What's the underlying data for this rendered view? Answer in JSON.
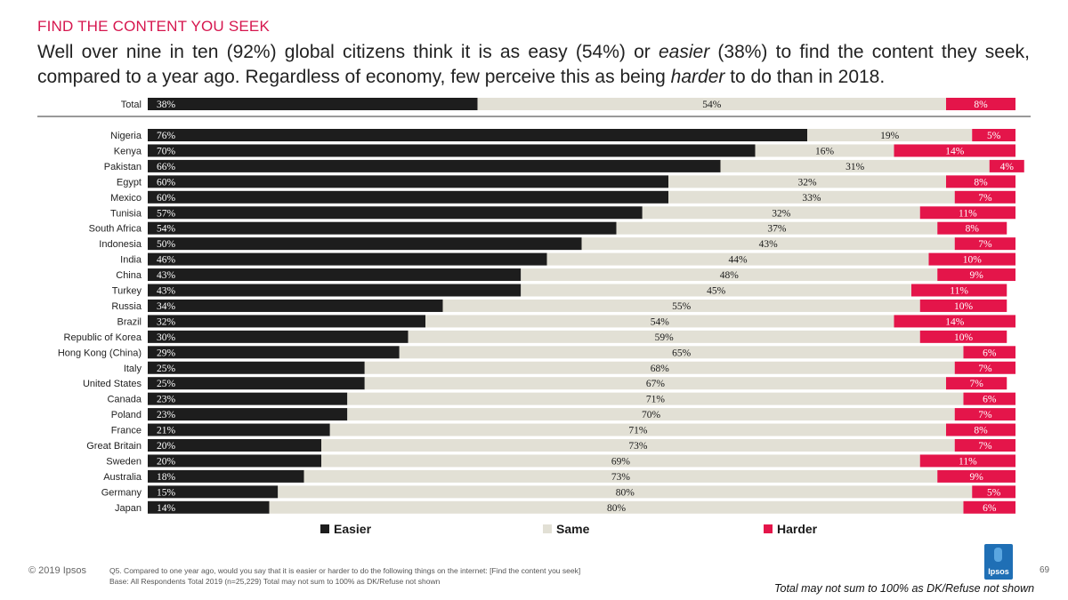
{
  "header": {
    "section_title": "FIND THE CONTENT YOU SEEK",
    "headline_parts": [
      "Well over nine in ten (92%) global citizens think it is as easy (54%) or ",
      "easier",
      " (38%) to find the content they seek, compared to a year ago. Regardless of economy, few perceive this as being ",
      "harder",
      " to do than in 2018."
    ]
  },
  "chart_data": {
    "type": "bar",
    "stacked": true,
    "orientation": "horizontal",
    "categories": [
      "Total",
      "Nigeria",
      "Kenya",
      "Pakistan",
      "Egypt",
      "Mexico",
      "Tunisia",
      "South Africa",
      "Indonesia",
      "India",
      "China",
      "Turkey",
      "Russia",
      "Brazil",
      "Republic of Korea",
      "Hong Kong (China)",
      "Italy",
      "United States",
      "Canada",
      "Poland",
      "France",
      "Great Britain",
      "Sweden",
      "Australia",
      "Germany",
      "Japan"
    ],
    "series": [
      {
        "name": "Easier",
        "color": "#1d1d1d",
        "label_color": "#ffffff",
        "values": [
          38,
          76,
          70,
          66,
          60,
          60,
          57,
          54,
          50,
          46,
          43,
          43,
          34,
          32,
          30,
          29,
          25,
          25,
          23,
          23,
          21,
          20,
          20,
          18,
          15,
          14
        ]
      },
      {
        "name": "Same",
        "color": "#e2e0d5",
        "label_color": "#1a1a1a",
        "values": [
          54,
          19,
          16,
          31,
          32,
          33,
          32,
          37,
          43,
          44,
          48,
          45,
          55,
          54,
          59,
          65,
          68,
          67,
          71,
          70,
          71,
          73,
          69,
          73,
          80,
          80
        ]
      },
      {
        "name": "Harder",
        "color": "#e4154a",
        "label_color": "#ffffff",
        "values": [
          8,
          5,
          14,
          4,
          8,
          7,
          11,
          8,
          7,
          10,
          9,
          11,
          10,
          14,
          10,
          6,
          7,
          7,
          6,
          7,
          8,
          7,
          11,
          9,
          5,
          6
        ]
      }
    ],
    "value_suffix": "%",
    "xlim": [
      0,
      100
    ],
    "legend_position": "bottom",
    "legend": [
      "Easier",
      "Same",
      "Harder"
    ]
  },
  "footer": {
    "copyright": "© 2019 Ipsos",
    "question": "Q5. Compared to one year ago, would you say that it is easier or harder to do the following things on the internet: [Find the content you seek]",
    "base": "Base: All Respondents Total 2019 (n=25,229) Total may not sum to 100% as DK/Refuse not shown",
    "logo_text": "Ipsos",
    "page_number": "69",
    "note": "Total may not sum to 100% as DK/Refuse not shown"
  }
}
